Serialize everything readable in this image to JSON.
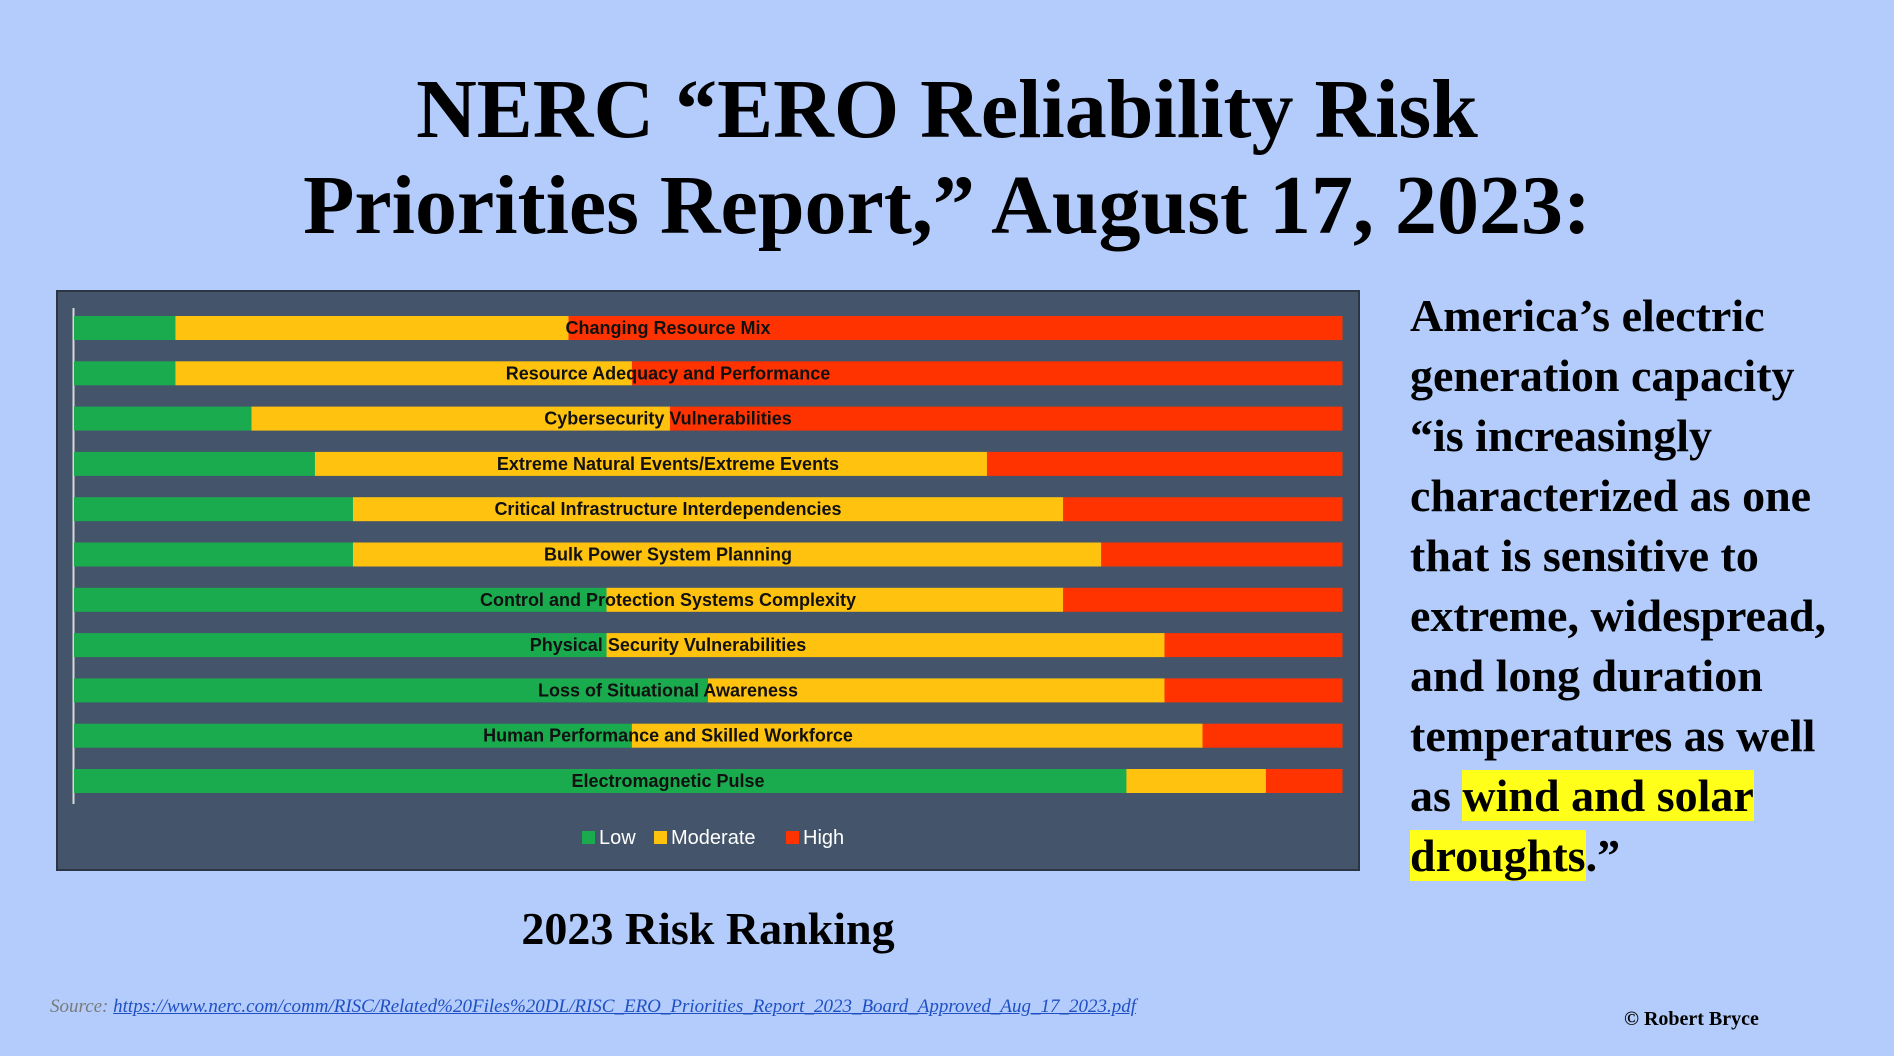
{
  "title": {
    "line1": "NERC “ERO Reliability Risk",
    "line2": "Priorities Report,” August 17, 2023:"
  },
  "chart_caption": "2023 Risk Ranking",
  "quote": {
    "lines": [
      "America’s electric",
      "generation capacity",
      "“is increasingly",
      "characterized as one",
      "that is sensitive to",
      "extreme, widespread,",
      "and long duration",
      "temperatures as well"
    ],
    "last_line_prefix": "as ",
    "highlight_part1": "wind and solar ",
    "highlight_part2": "droughts",
    "closing": ".”"
  },
  "source": {
    "label": "Source:",
    "url_text": "https://www.nerc.com/comm/RISC/Related%20Files%20DL/RISC_ERO_Priorities_Report_2023_Board_Approved_Aug_17_2023.pdf"
  },
  "copyright": "© Robert Bryce",
  "colors": {
    "low": "#1bab4f",
    "moderate": "#ffc20e",
    "high": "#ff3300",
    "panel": "#44546a",
    "background": "#b3ccfb",
    "highlight": "#ffff1a"
  },
  "chart_data": {
    "type": "bar",
    "orientation": "horizontal",
    "stacked": true,
    "percent": true,
    "categories": [
      "Changing Resource Mix",
      "Resource Adequacy and Performance",
      "Cybersecurity Vulnerabilities",
      "Extreme Natural Events/Extreme Events",
      "Critical  Infrastructure Interdependencies",
      "Bulk Power System Planning",
      "Control and Protection Systems Complexity",
      "Physical Security Vulnerabilities",
      "Loss of Situational Awareness",
      "Human Performance and Skilled Workforce",
      "Electromagnetic Pulse"
    ],
    "series": [
      {
        "name": "Low",
        "values": [
          8,
          8,
          14,
          19,
          22,
          22,
          42,
          42,
          50,
          44,
          83
        ]
      },
      {
        "name": "Moderate",
        "values": [
          31,
          36,
          33,
          53,
          56,
          59,
          36,
          44,
          36,
          45,
          11
        ]
      },
      {
        "name": "High",
        "values": [
          61,
          56,
          53,
          28,
          22,
          19,
          22,
          14,
          14,
          11,
          6
        ]
      }
    ],
    "legend": "bottom",
    "grid": false
  }
}
